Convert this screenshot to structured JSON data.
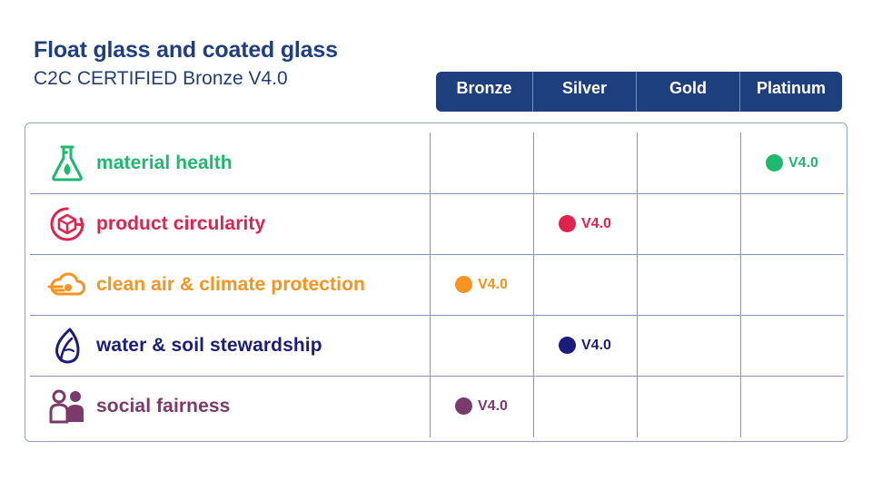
{
  "title": "Float glass and coated glass",
  "subtitle": "C2C CERTIFIED Bronze V4.0",
  "chart_data": {
    "type": "table",
    "levels": [
      "Bronze",
      "Silver",
      "Gold",
      "Platinum"
    ],
    "rows": [
      {
        "category": "material health",
        "icon": "flask-icon",
        "color": "#1db96e",
        "level": "Platinum",
        "version": "V4.0"
      },
      {
        "category": "product circularity",
        "icon": "cube-cycle-icon",
        "color": "#e0234e",
        "level": "Silver",
        "version": "V4.0"
      },
      {
        "category": "clean air & climate protection",
        "icon": "cloud-icon",
        "color": "#f7931e",
        "level": "Bronze",
        "version": "V4.0"
      },
      {
        "category": "water & soil stewardship",
        "icon": "leaf-drop-icon",
        "color": "#1a1d7a",
        "level": "Silver",
        "version": "V4.0"
      },
      {
        "category": "social fairness",
        "icon": "people-icon",
        "color": "#7b3a6b",
        "level": "Bronze",
        "version": "V4.0"
      }
    ]
  }
}
